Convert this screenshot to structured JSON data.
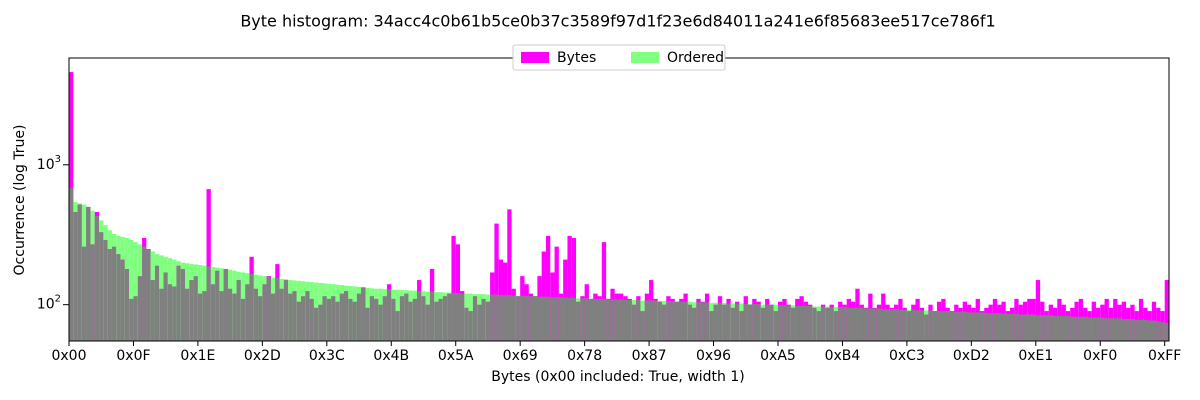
{
  "chart_data": {
    "type": "histogram",
    "title": "Byte histogram: 34acc4c0b61b5ce0b37c3589f97d1f23e6d84011a241e6f85683ee517ce786f1",
    "xlabel": "Bytes (0x00 included: True, width 1)",
    "ylabel": "Occurrence (log True)",
    "log_y": true,
    "legend": "upper center",
    "bins": [
      0,
      1,
      2,
      3,
      4,
      5,
      6,
      7,
      8,
      9,
      10,
      11,
      12,
      13,
      14,
      15,
      16,
      17,
      18,
      19,
      20,
      21,
      22,
      23,
      24,
      25,
      26,
      27,
      28,
      29,
      30,
      31,
      32,
      33,
      34,
      35,
      36,
      37,
      38,
      39,
      40,
      41,
      42,
      43,
      44,
      45,
      46,
      47,
      48,
      49,
      50,
      51,
      52,
      53,
      54,
      55,
      56,
      57,
      58,
      59,
      60,
      61,
      62,
      63,
      64,
      65,
      66,
      67,
      68,
      69,
      70,
      71,
      72,
      73,
      74,
      75,
      76,
      77,
      78,
      79,
      80,
      81,
      82,
      83,
      84,
      85,
      86,
      87,
      88,
      89,
      90,
      91,
      92,
      93,
      94,
      95,
      96,
      97,
      98,
      99,
      100,
      101,
      102,
      103,
      104,
      105,
      106,
      107,
      108,
      109,
      110,
      111,
      112,
      113,
      114,
      115,
      116,
      117,
      118,
      119,
      120,
      121,
      122,
      123,
      124,
      125,
      126,
      127,
      128,
      129,
      130,
      131,
      132,
      133,
      134,
      135,
      136,
      137,
      138,
      139,
      140,
      141,
      142,
      143,
      144,
      145,
      146,
      147,
      148,
      149,
      150,
      151,
      152,
      153,
      154,
      155,
      156,
      157,
      158,
      159,
      160,
      161,
      162,
      163,
      164,
      165,
      166,
      167,
      168,
      169,
      170,
      171,
      172,
      173,
      174,
      175,
      176,
      177,
      178,
      179,
      180,
      181,
      182,
      183,
      184,
      185,
      186,
      187,
      188,
      189,
      190,
      191,
      192,
      193,
      194,
      195,
      196,
      197,
      198,
      199,
      200,
      201,
      202,
      203,
      204,
      205,
      206,
      207,
      208,
      209,
      210,
      211,
      212,
      213,
      214,
      215,
      216,
      217,
      218,
      219,
      220,
      221,
      222,
      223,
      224,
      225,
      226,
      227,
      228,
      229,
      230,
      231,
      232,
      233,
      234,
      235,
      236,
      237,
      238,
      239,
      240,
      241,
      242,
      243,
      244,
      245,
      246,
      247,
      248,
      249,
      250,
      251,
      252,
      253,
      254,
      255,
      256
    ],
    "series": [
      {
        "name": "Bytes",
        "color": "#ff00ff",
        "values": [
          4600,
          460,
          520,
          260,
          500,
          270,
          460,
          330,
          290,
          250,
          260,
          230,
          210,
          180,
          110,
          115,
          160,
          300,
          250,
          150,
          190,
          130,
          170,
          140,
          135,
          190,
          180,
          130,
          150,
          160,
          120,
          125,
          670,
          140,
          175,
          125,
          180,
          130,
          120,
          150,
          110,
          140,
          220,
          130,
          115,
          140,
          160,
          120,
          195,
          130,
          150,
          120,
          125,
          105,
          115,
          125,
          110,
          95,
          100,
          115,
          110,
          115,
          105,
          120,
          125,
          110,
          105,
          120,
          133,
          95,
          115,
          110,
          100,
          115,
          140,
          110,
          90,
          115,
          120,
          105,
          110,
          150,
          115,
          100,
          180,
          105,
          110,
          115,
          120,
          310,
          270,
          125,
          95,
          90,
          115,
          100,
          110,
          105,
          170,
          380,
          210,
          200,
          480,
          130,
          115,
          160,
          140,
          120,
          115,
          160,
          240,
          310,
          170,
          260,
          120,
          210,
          310,
          300,
          105,
          115,
          140,
          110,
          120,
          115,
          280,
          110,
          130,
          120,
          120,
          115,
          110,
          100,
          115,
          90,
          120,
          150,
          110,
          105,
          100,
          115,
          110,
          105,
          110,
          120,
          100,
          95,
          110,
          105,
          120,
          90,
          100,
          115,
          100,
          110,
          95,
          105,
          90,
          115,
          100,
          110,
          105,
          95,
          110,
          100,
          90,
          105,
          110,
          100,
          95,
          110,
          115,
          105,
          100,
          95,
          90,
          100,
          95,
          100,
          90,
          105,
          100,
          110,
          105,
          130,
          100,
          95,
          120,
          95,
          100,
          120,
          100,
          95,
          100,
          110,
          95,
          90,
          100,
          110,
          95,
          85,
          100,
          90,
          105,
          110,
          95,
          90,
          100,
          95,
          105,
          100,
          95,
          110,
          90,
          95,
          100,
          110,
          100,
          105,
          90,
          95,
          110,
          100,
          105,
          110,
          110,
          150,
          105,
          90,
          100,
          95,
          110,
          100,
          90,
          95,
          105,
          110,
          95,
          90,
          105,
          95,
          100,
          110,
          95,
          110,
          100,
          105,
          95,
          100,
          90,
          110,
          95,
          90,
          105,
          95,
          90,
          150
        ]
      },
      {
        "name": "Ordered",
        "color": "#80ff80",
        "values": [
          680,
          540,
          530,
          520,
          500,
          470,
          430,
          400,
          370,
          340,
          320,
          310,
          305,
          300,
          290,
          280,
          270,
          260,
          250,
          240,
          230,
          225,
          220,
          215,
          210,
          205,
          200,
          198,
          196,
          194,
          192,
          190,
          188,
          186,
          184,
          182,
          180,
          178,
          175,
          172,
          170,
          168,
          166,
          164,
          162,
          160,
          158,
          156,
          155,
          153,
          152,
          150,
          149,
          148,
          147,
          146,
          145,
          144,
          143,
          142,
          141,
          140,
          139,
          138,
          137,
          136,
          135,
          134,
          133,
          132,
          131,
          130,
          130,
          129,
          129,
          128,
          128,
          127,
          127,
          126,
          126,
          125,
          125,
          124,
          124,
          123,
          123,
          122,
          122,
          121,
          121,
          120,
          120,
          120,
          119,
          119,
          119,
          118,
          118,
          118,
          117,
          117,
          117,
          116,
          116,
          116,
          115,
          115,
          115,
          114,
          114,
          114,
          113,
          113,
          113,
          112,
          112,
          112,
          111,
          111,
          111,
          110,
          110,
          110,
          110,
          109,
          109,
          109,
          109,
          108,
          108,
          108,
          108,
          107,
          107,
          107,
          107,
          106,
          106,
          106,
          106,
          105,
          105,
          105,
          105,
          104,
          104,
          104,
          104,
          103,
          103,
          103,
          103,
          102,
          102,
          102,
          102,
          101,
          101,
          101,
          101,
          100,
          100,
          100,
          100,
          99,
          99,
          99,
          99,
          98,
          98,
          98,
          98,
          97,
          97,
          97,
          97,
          96,
          96,
          96,
          96,
          95,
          95,
          95,
          95,
          94,
          94,
          94,
          94,
          93,
          93,
          93,
          93,
          92,
          92,
          92,
          92,
          91,
          91,
          91,
          91,
          90,
          90,
          90,
          90,
          89,
          89,
          89,
          89,
          88,
          88,
          88,
          88,
          87,
          87,
          87,
          87,
          86,
          86,
          86,
          86,
          85,
          85,
          85,
          85,
          84,
          84,
          84,
          84,
          83,
          83,
          83,
          83,
          82,
          82,
          82,
          82,
          81,
          81,
          81,
          81,
          80,
          80,
          80,
          80,
          79,
          79,
          79,
          78,
          78,
          78,
          77,
          77,
          76,
          75,
          74
        ]
      }
    ],
    "xlim": [
      0,
      256
    ],
    "xticks": [
      {
        "value": 0,
        "label": "0x00"
      },
      {
        "value": 15,
        "label": "0x0F"
      },
      {
        "value": 30,
        "label": "0x1E"
      },
      {
        "value": 45,
        "label": "0x2D"
      },
      {
        "value": 60,
        "label": "0x3C"
      },
      {
        "value": 75,
        "label": "0x4B"
      },
      {
        "value": 90,
        "label": "0x5A"
      },
      {
        "value": 105,
        "label": "0x69"
      },
      {
        "value": 120,
        "label": "0x78"
      },
      {
        "value": 135,
        "label": "0x87"
      },
      {
        "value": 150,
        "label": "0x96"
      },
      {
        "value": 165,
        "label": "0xA5"
      },
      {
        "value": 180,
        "label": "0xB4"
      },
      {
        "value": 195,
        "label": "0xC3"
      },
      {
        "value": 210,
        "label": "0xD2"
      },
      {
        "value": 225,
        "label": "0xE1"
      },
      {
        "value": 240,
        "label": "0xF0"
      },
      {
        "value": 255,
        "label": "0xFF"
      }
    ],
    "ylim": [
      55,
      5800
    ],
    "yticks": [
      {
        "value": 100,
        "label": "10^2"
      },
      {
        "value": 1000,
        "label": "10^3"
      }
    ]
  }
}
